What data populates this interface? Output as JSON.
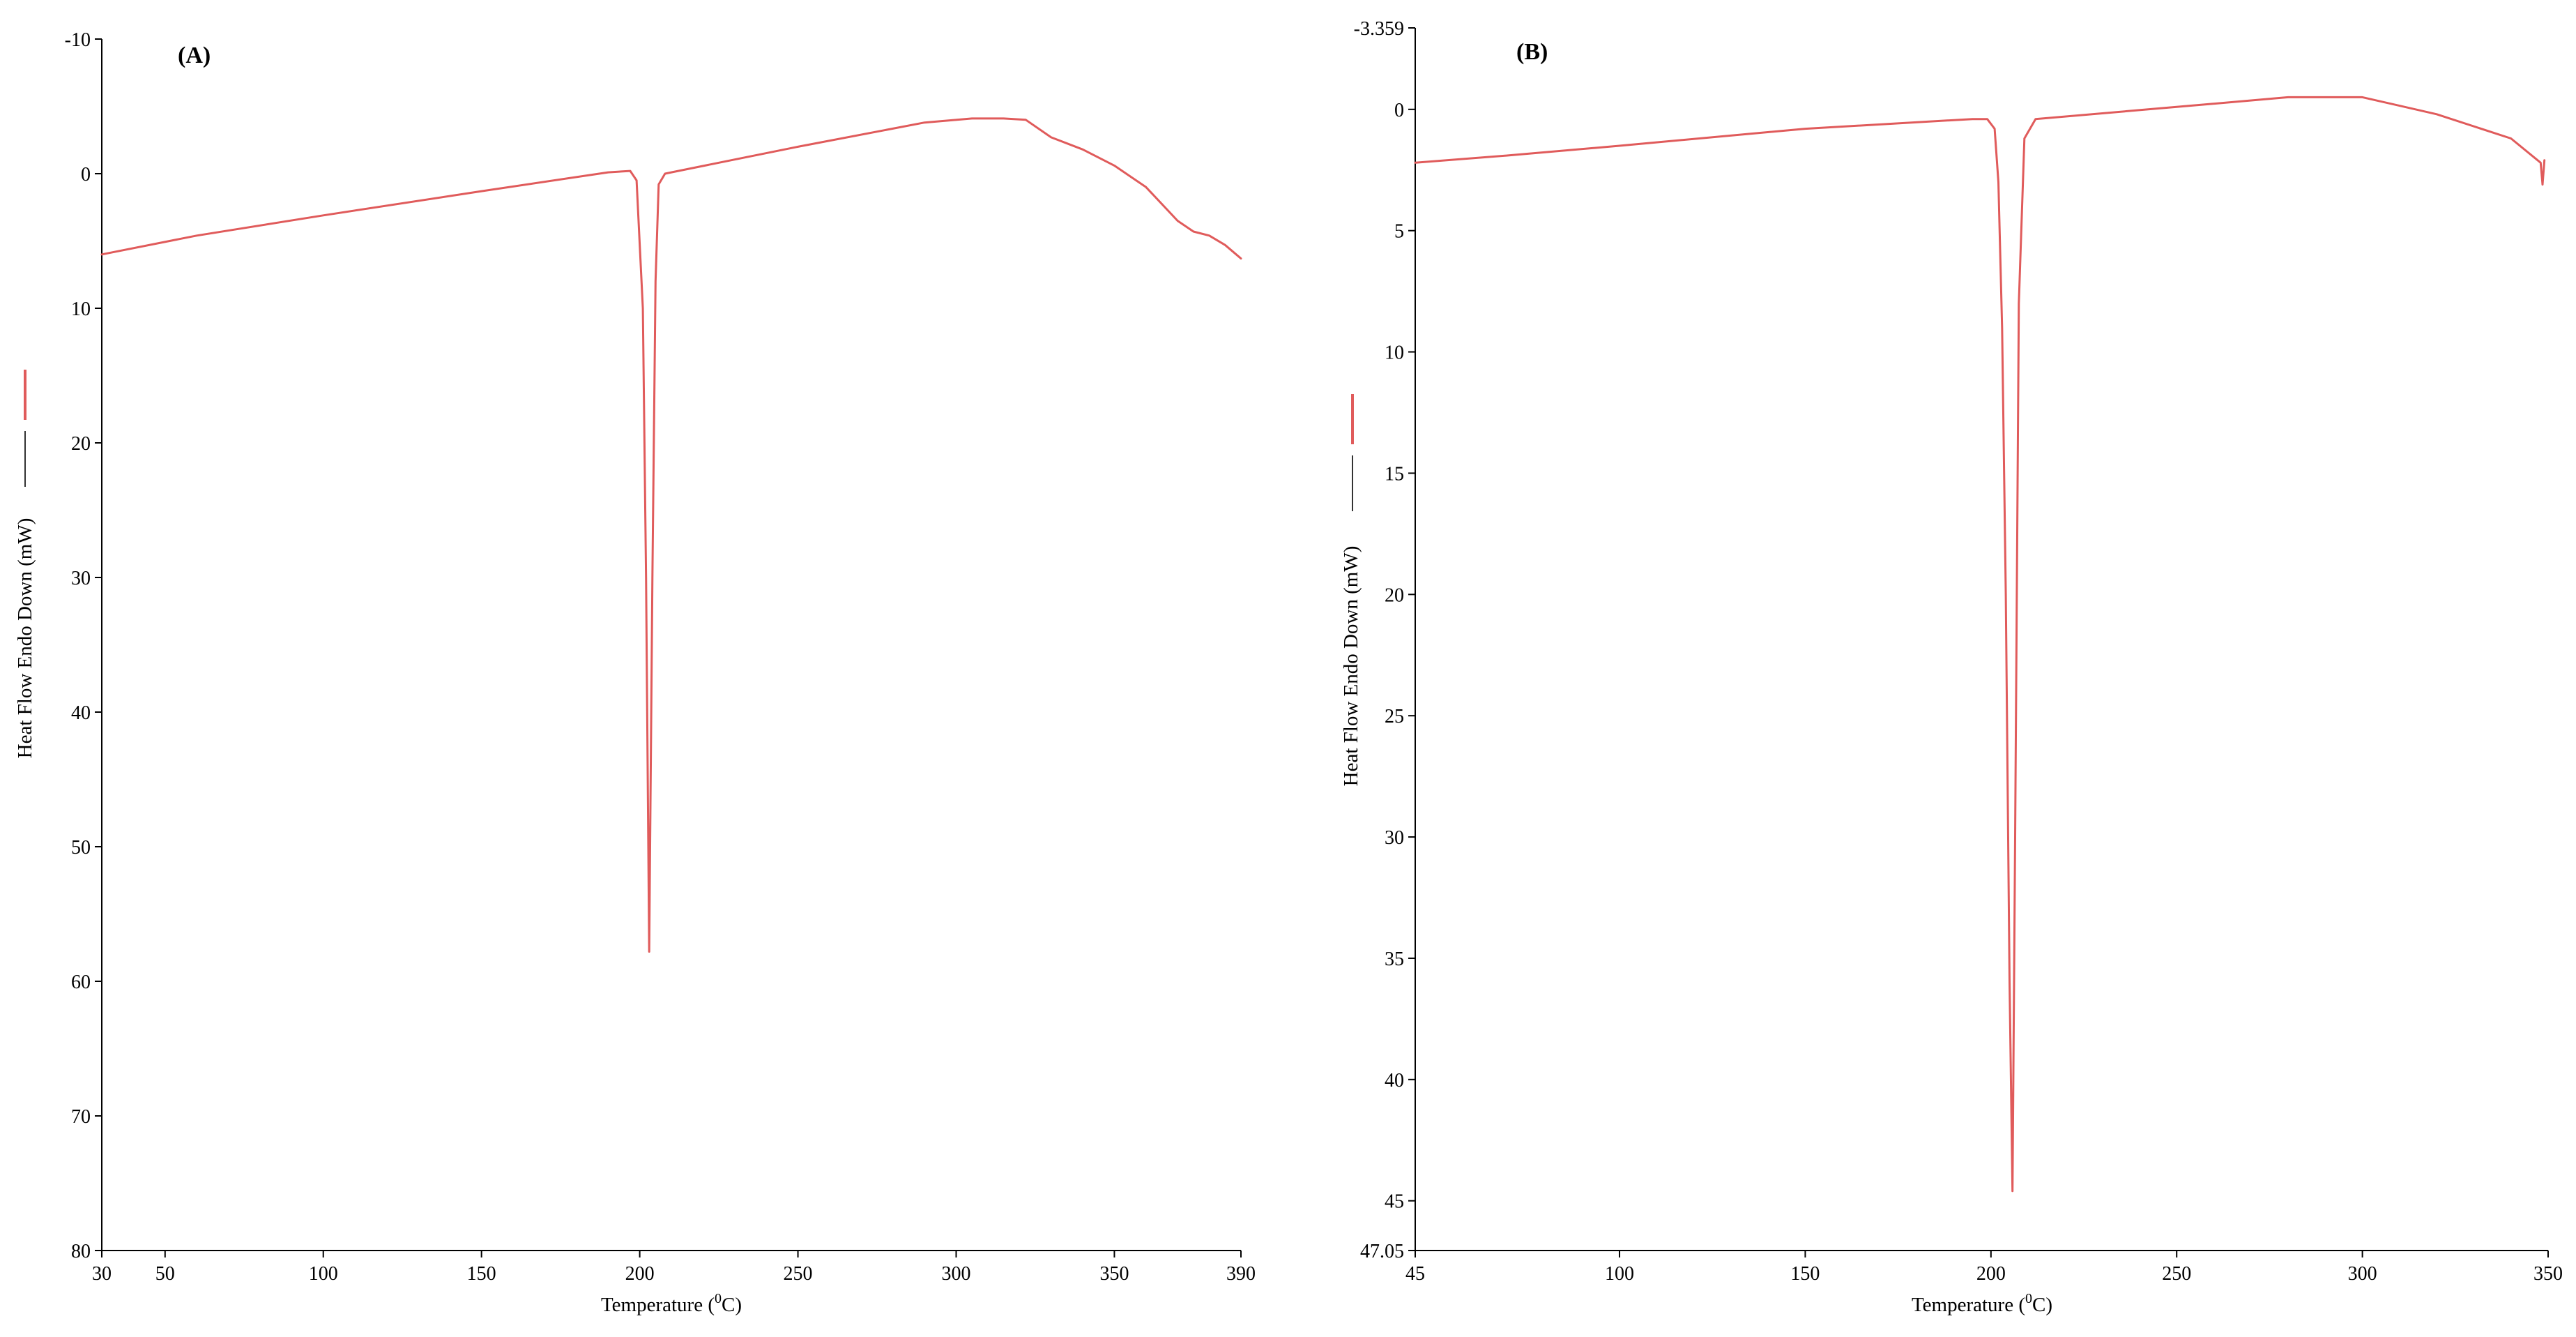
{
  "series_color": "#e05b5b",
  "chart_data": [
    {
      "type": "line",
      "panel_label": "(A)",
      "xlabel": "Temperature (",
      "xlabel_sup": "0",
      "xlabel_tail": "C)",
      "ylabel": "Heat Flow Endo Down (mW)",
      "y_inverted": true,
      "grid": false,
      "xlim": [
        30,
        390
      ],
      "ylim": [
        -10,
        80
      ],
      "x_ticks": [
        30,
        50,
        100,
        150,
        200,
        250,
        300,
        350,
        390
      ],
      "y_ticks": [
        -10,
        0,
        10,
        20,
        30,
        40,
        50,
        60,
        70,
        80
      ],
      "series": [
        {
          "x": [
            30,
            60,
            100,
            150,
            190,
            197,
            199,
            201,
            202,
            203,
            204,
            205,
            206,
            208,
            210,
            250,
            290,
            305,
            315,
            322,
            330,
            340,
            350,
            360,
            370,
            375,
            380,
            385,
            390
          ],
          "y": [
            6.0,
            4.6,
            3.1,
            1.3,
            -0.1,
            -0.2,
            0.5,
            10,
            30,
            57.8,
            30,
            8,
            0.8,
            0.0,
            -0.1,
            -2.0,
            -3.8,
            -4.1,
            -4.1,
            -4.0,
            -2.7,
            -1.8,
            -0.6,
            1.0,
            3.5,
            4.3,
            4.6,
            5.3,
            6.3
          ]
        }
      ]
    },
    {
      "type": "line",
      "panel_label": "(B)",
      "xlabel": "Temperature (",
      "xlabel_sup": "0",
      "xlabel_tail": "C)",
      "ylabel": "Heat Flow Endo Down (mW)",
      "y_inverted": true,
      "grid": false,
      "xlim": [
        45,
        350
      ],
      "ylim": [
        -3.359,
        47.05
      ],
      "x_ticks": [
        45,
        100,
        150,
        200,
        250,
        300,
        350
      ],
      "y_ticks": [
        -3.359,
        0,
        5,
        10,
        15,
        20,
        25,
        30,
        35,
        40,
        45,
        47.05
      ],
      "series": [
        {
          "x": [
            45,
            70,
            100,
            150,
            195,
            199,
            201,
            202,
            203,
            204,
            205,
            205.8,
            206.5,
            207.5,
            209,
            212,
            250,
            280,
            300,
            320,
            340,
            348,
            348.5,
            349
          ],
          "y": [
            2.2,
            1.9,
            1.5,
            0.8,
            0.4,
            0.4,
            0.8,
            3.0,
            9.0,
            20.0,
            36.0,
            44.6,
            30.0,
            8.0,
            1.2,
            0.4,
            -0.1,
            -0.5,
            -0.5,
            0.2,
            1.2,
            2.2,
            3.1,
            2.1
          ]
        }
      ]
    }
  ]
}
